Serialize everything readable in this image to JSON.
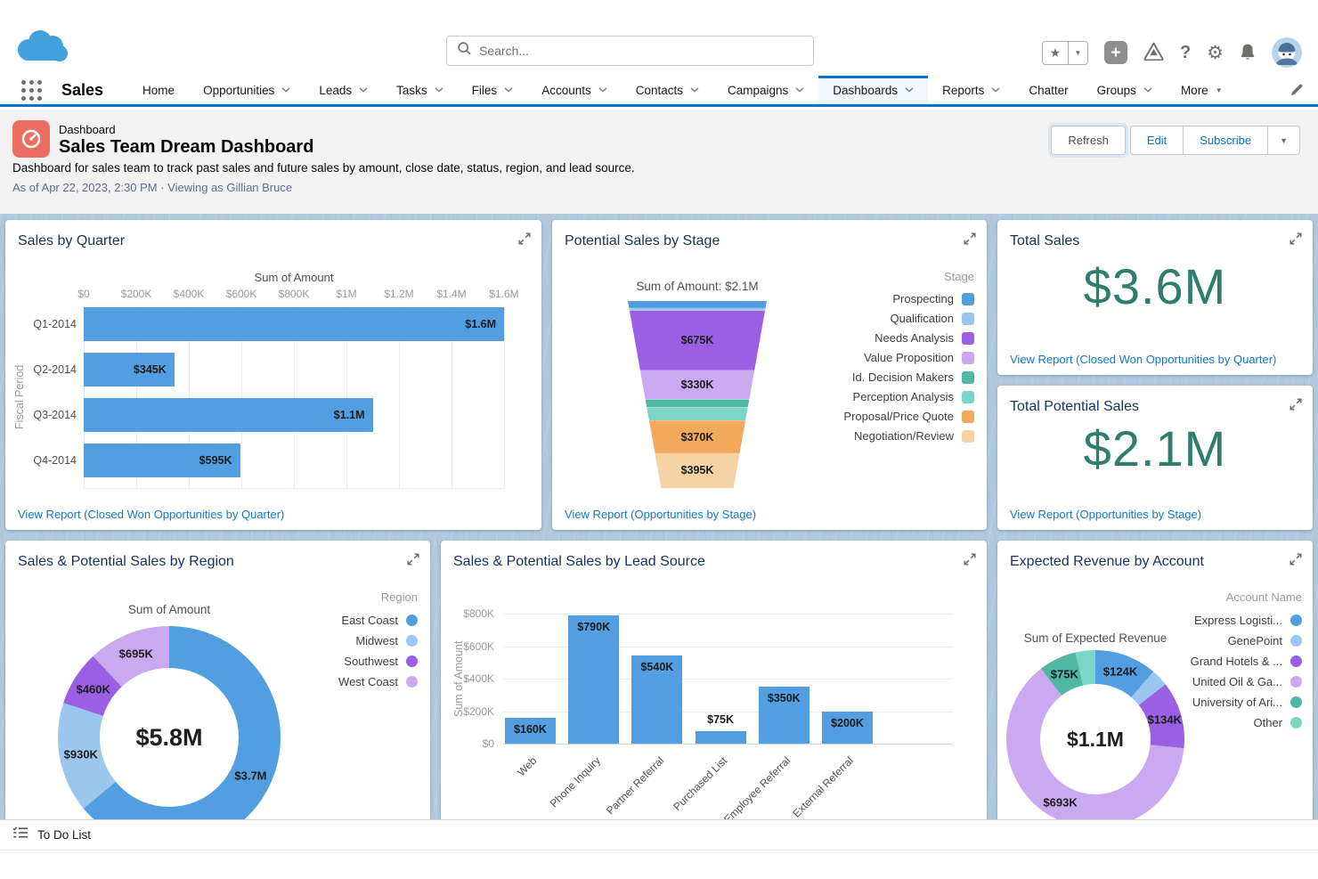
{
  "topbar": {
    "search_placeholder": "Search...",
    "glyphs": {
      "star": "★",
      "caret": "▼",
      "plus": "+",
      "help": "?",
      "gear": "⚙"
    }
  },
  "nav": {
    "app_name": "Sales",
    "tabs": [
      {
        "label": "Home"
      },
      {
        "label": "Opportunities",
        "chevron": true
      },
      {
        "label": "Leads",
        "chevron": true
      },
      {
        "label": "Tasks",
        "chevron": true
      },
      {
        "label": "Files",
        "chevron": true
      },
      {
        "label": "Accounts",
        "chevron": true
      },
      {
        "label": "Contacts",
        "chevron": true
      },
      {
        "label": "Campaigns",
        "chevron": true
      },
      {
        "label": "Dashboards",
        "chevron": true,
        "selected": true
      },
      {
        "label": "Reports",
        "chevron": true
      },
      {
        "label": "Chatter"
      },
      {
        "label": "Groups",
        "chevron": true
      },
      {
        "label": "More",
        "caret": true
      }
    ]
  },
  "header": {
    "record_type": "Dashboard",
    "title": "Sales Team Dream Dashboard",
    "description": "Dashboard for sales team to track past sales and future sales by amount, close date, status, region, and lead source.",
    "meta": "As of Apr 22, 2023, 2:30 PM · Viewing as Gillian Bruce",
    "actions": {
      "refresh": "Refresh",
      "edit": "Edit",
      "subscribe": "Subscribe"
    }
  },
  "footer": {
    "label": "To Do List"
  },
  "colors": {
    "brand_blue": "#0176D3",
    "chart_blue": "#529EE0",
    "chart_light_blue": "#9BC6EE",
    "chart_purple": "#9A5FE3",
    "chart_light_purple": "#C9A9EF",
    "chart_teal": "#4FB7A2",
    "chart_light_teal": "#7CD6C5",
    "chart_orange": "#F2A95C",
    "chart_light_orange": "#F6D3A5",
    "metric_teal": "#2E7D6F",
    "header_icon": "#EC6E62"
  },
  "chart_data": [
    {
      "id": "sales_by_quarter",
      "type": "bar",
      "orientation": "horizontal",
      "title": "Sales by Quarter",
      "axis_title": "Sum of Amount",
      "category_axis_label": "Fiscal Period",
      "categories": [
        "Q1-2014",
        "Q2-2014",
        "Q3-2014",
        "Q4-2014"
      ],
      "values_k": [
        1600,
        345,
        1100,
        595
      ],
      "value_labels": [
        "$1.6M",
        "$345K",
        "$1.1M",
        "$595K"
      ],
      "x_ticks": [
        "$0",
        "$200K",
        "$400K",
        "$600K",
        "$800K",
        "$1M",
        "$1.2M",
        "$1.4M",
        "$1.6M"
      ],
      "xmax_k": 1600,
      "grid": true,
      "link": "View Report (Closed Won Opportunities by Quarter)"
    },
    {
      "id": "potential_sales_by_stage",
      "type": "funnel",
      "title": "Potential Sales by Stage",
      "subtitle": "Sum of Amount: $2.1M",
      "legend_title": "Stage",
      "legend_position": "right",
      "stages": [
        {
          "label": "Prospecting",
          "value_k": 80,
          "color": "chart_blue"
        },
        {
          "label": "Qualification",
          "value_k": 30,
          "color": "chart_light_blue"
        },
        {
          "label": "Needs Analysis",
          "value_k": 675,
          "value_label": "$675K",
          "color": "chart_purple"
        },
        {
          "label": "Value Proposition",
          "value_k": 330,
          "value_label": "$330K",
          "color": "chart_light_purple"
        },
        {
          "label": "Id. Decision Makers",
          "value_k": 90,
          "color": "chart_teal"
        },
        {
          "label": "Perception Analysis",
          "value_k": 150,
          "color": "chart_light_teal"
        },
        {
          "label": "Proposal/Price Quote",
          "value_k": 370,
          "value_label": "$370K",
          "color": "chart_orange"
        },
        {
          "label": "Negotiation/Review",
          "value_k": 395,
          "value_label": "$395K",
          "color": "chart_light_orange"
        }
      ],
      "link": "View Report (Opportunities by Stage)"
    },
    {
      "id": "total_sales",
      "type": "metric",
      "title": "Total Sales",
      "value": "$3.6M",
      "link": "View Report (Closed Won Opportunities by Quarter)"
    },
    {
      "id": "total_potential_sales",
      "type": "metric",
      "title": "Total Potential Sales",
      "value": "$2.1M",
      "link": "View Report (Opportunities by Stage)"
    },
    {
      "id": "sales_by_region",
      "type": "donut",
      "title": "Sales & Potential Sales by Region",
      "subtitle": "Sum of Amount",
      "legend_title": "Region",
      "center_label": "$5.8M",
      "slices": [
        {
          "label": "East Coast",
          "value_k": 3700,
          "value_label": "$3.7M",
          "color": "chart_blue"
        },
        {
          "label": "Midwest",
          "value_k": 930,
          "value_label": "$930K",
          "color": "chart_light_blue"
        },
        {
          "label": "Southwest",
          "value_k": 460,
          "value_label": "$460K",
          "color": "chart_purple"
        },
        {
          "label": "West Coast",
          "value_k": 695,
          "value_label": "$695K",
          "color": "chart_light_purple"
        }
      ]
    },
    {
      "id": "sales_by_lead_source",
      "type": "bar",
      "orientation": "vertical",
      "title": "Sales & Potential Sales by Lead Source",
      "value_axis_label": "Sum of Amount",
      "categories": [
        "Web",
        "Phone Inquiry",
        "Partner Referral",
        "Purchased List",
        "Employee Referral",
        "External Referral"
      ],
      "values_k": [
        160,
        790,
        540,
        75,
        350,
        200
      ],
      "value_labels": [
        "$160K",
        "$790K",
        "$540K",
        "$75K",
        "$350K",
        "$200K"
      ],
      "y_ticks": [
        "$0",
        "$200K",
        "$400K",
        "$600K",
        "$800K"
      ],
      "ymax_k": 800,
      "grid": true
    },
    {
      "id": "expected_revenue_by_account",
      "type": "donut",
      "title": "Expected Revenue by Account",
      "subtitle": "Sum of Expected Revenue",
      "legend_title": "Account Name",
      "center_label": "$1.1M",
      "slices": [
        {
          "label": "Express Logisti...",
          "value_k": 124,
          "value_label": "$124K",
          "color": "chart_blue"
        },
        {
          "label": "GenePoint",
          "value_k": 35,
          "color": "chart_light_blue"
        },
        {
          "label": "Grand Hotels & ...",
          "value_k": 134,
          "value_label": "$134K",
          "color": "chart_purple"
        },
        {
          "label": "United Oil & Ga...",
          "value_k": 693,
          "value_label": "$693K",
          "color": "chart_light_purple"
        },
        {
          "label": "University of Ari...",
          "value_k": 75,
          "value_label": "$75K",
          "color": "chart_teal"
        },
        {
          "label": "Other",
          "value_k": 40,
          "color": "chart_light_teal"
        }
      ]
    }
  ]
}
